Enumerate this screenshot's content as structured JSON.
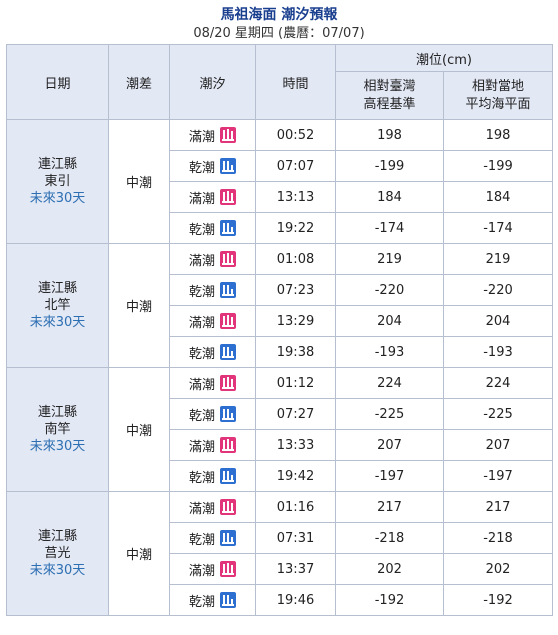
{
  "header": {
    "title": "馬祖海面 潮汐預報",
    "subtitle": "08/20 星期四 (農曆：07/07)"
  },
  "columns": {
    "date": "日期",
    "range": "潮差",
    "tide": "潮汐",
    "time": "時間",
    "level": "潮位(cm)",
    "level_twvd": "相對臺灣\n高程基準",
    "level_local": "相對當地\n平均海平面"
  },
  "colors": {
    "high_tide": "#e2347a",
    "low_tide": "#2d6fd0",
    "header_bg": "#e3e8f5",
    "link": "#2c6fb2"
  },
  "stations": [
    {
      "county": "連江縣",
      "name": "東引",
      "future": "未來30天",
      "range": "中潮",
      "rows": [
        {
          "type": "滿潮",
          "kind": "high",
          "time": "00:52",
          "twvd": "198",
          "local": "198"
        },
        {
          "type": "乾潮",
          "kind": "low",
          "time": "07:07",
          "twvd": "-199",
          "local": "-199"
        },
        {
          "type": "滿潮",
          "kind": "high",
          "time": "13:13",
          "twvd": "184",
          "local": "184"
        },
        {
          "type": "乾潮",
          "kind": "low",
          "time": "19:22",
          "twvd": "-174",
          "local": "-174"
        }
      ]
    },
    {
      "county": "連江縣",
      "name": "北竿",
      "future": "未來30天",
      "range": "中潮",
      "rows": [
        {
          "type": "滿潮",
          "kind": "high",
          "time": "01:08",
          "twvd": "219",
          "local": "219"
        },
        {
          "type": "乾潮",
          "kind": "low",
          "time": "07:23",
          "twvd": "-220",
          "local": "-220"
        },
        {
          "type": "滿潮",
          "kind": "high",
          "time": "13:29",
          "twvd": "204",
          "local": "204"
        },
        {
          "type": "乾潮",
          "kind": "low",
          "time": "19:38",
          "twvd": "-193",
          "local": "-193"
        }
      ]
    },
    {
      "county": "連江縣",
      "name": "南竿",
      "future": "未來30天",
      "range": "中潮",
      "rows": [
        {
          "type": "滿潮",
          "kind": "high",
          "time": "01:12",
          "twvd": "224",
          "local": "224"
        },
        {
          "type": "乾潮",
          "kind": "low",
          "time": "07:27",
          "twvd": "-225",
          "local": "-225"
        },
        {
          "type": "滿潮",
          "kind": "high",
          "time": "13:33",
          "twvd": "207",
          "local": "207"
        },
        {
          "type": "乾潮",
          "kind": "low",
          "time": "19:42",
          "twvd": "-197",
          "local": "-197"
        }
      ]
    },
    {
      "county": "連江縣",
      "name": "莒光",
      "future": "未來30天",
      "range": "中潮",
      "rows": [
        {
          "type": "滿潮",
          "kind": "high",
          "time": "01:16",
          "twvd": "217",
          "local": "217"
        },
        {
          "type": "乾潮",
          "kind": "low",
          "time": "07:31",
          "twvd": "-218",
          "local": "-218"
        },
        {
          "type": "滿潮",
          "kind": "high",
          "time": "13:37",
          "twvd": "202",
          "local": "202"
        },
        {
          "type": "乾潮",
          "kind": "low",
          "time": "19:46",
          "twvd": "-192",
          "local": "-192"
        }
      ]
    }
  ]
}
